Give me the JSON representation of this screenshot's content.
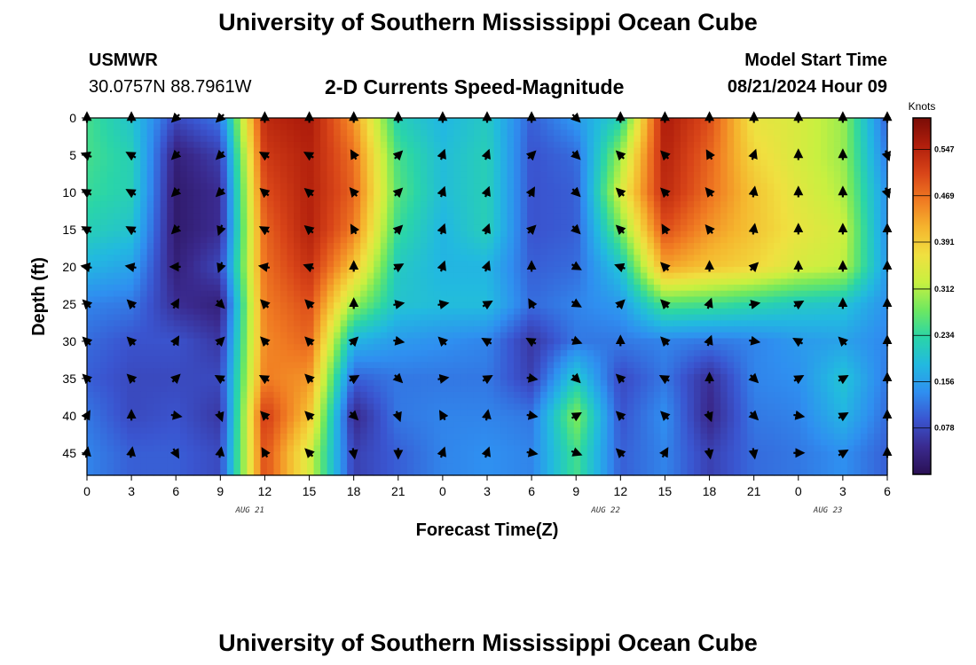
{
  "header": {
    "title_top": "University of Southern Mississippi Ocean Cube",
    "station": "USMWR",
    "coordinates": "30.0757N  88.7961W",
    "subtitle": "2-D Currents Speed-Magnitude",
    "model_label": "Model Start Time",
    "model_time": "08/21/2024 Hour 09",
    "title_bottom": "University of Southern Mississippi Ocean Cube"
  },
  "chart_data": {
    "type": "heatmap",
    "title": "2-D Currents Speed-Magnitude",
    "xlabel": "Forecast Time(Z)",
    "ylabel": "Depth (ft)",
    "xlim": [
      0,
      54
    ],
    "ylim": [
      0,
      48
    ],
    "x_hours": [
      0,
      3,
      6,
      9,
      12,
      15,
      18,
      21,
      24,
      27,
      30,
      33,
      36,
      39,
      42,
      45,
      48,
      51,
      54
    ],
    "x_tick_labels": [
      "0",
      "3",
      "6",
      "9",
      "12",
      "15",
      "18",
      "21",
      "0",
      "3",
      "6",
      "9",
      "12",
      "15",
      "18",
      "21",
      "0",
      "3",
      "6"
    ],
    "date_labels": [
      {
        "hour": 11,
        "label": "AUG 21"
      },
      {
        "hour": 35,
        "label": "AUG 22"
      },
      {
        "hour": 50,
        "label": "AUG 23"
      }
    ],
    "y_ticks": [
      0,
      5,
      10,
      15,
      20,
      25,
      30,
      35,
      40,
      45
    ],
    "y_tick_labels": [
      "0",
      "5",
      "10",
      "15",
      "20",
      "25",
      "30",
      "35",
      "40",
      "45"
    ],
    "depths": [
      0,
      5,
      10,
      15,
      20,
      25,
      30,
      35,
      40,
      45
    ],
    "speed_knots": [
      [
        0.25,
        0.2,
        0.08,
        0.12,
        0.54,
        0.56,
        0.44,
        0.22,
        0.18,
        0.21,
        0.1,
        0.15,
        0.22,
        0.56,
        0.5,
        0.36,
        0.34,
        0.3,
        0.1
      ],
      [
        0.25,
        0.22,
        0.03,
        0.07,
        0.52,
        0.55,
        0.47,
        0.25,
        0.19,
        0.22,
        0.09,
        0.11,
        0.3,
        0.55,
        0.48,
        0.38,
        0.34,
        0.3,
        0.12
      ],
      [
        0.24,
        0.22,
        0.02,
        0.05,
        0.5,
        0.55,
        0.48,
        0.26,
        0.19,
        0.22,
        0.09,
        0.1,
        0.34,
        0.54,
        0.47,
        0.4,
        0.35,
        0.31,
        0.14
      ],
      [
        0.22,
        0.2,
        0.02,
        0.05,
        0.48,
        0.55,
        0.46,
        0.24,
        0.18,
        0.22,
        0.09,
        0.1,
        0.28,
        0.5,
        0.44,
        0.4,
        0.36,
        0.33,
        0.14
      ],
      [
        0.18,
        0.16,
        0.03,
        0.08,
        0.47,
        0.53,
        0.4,
        0.21,
        0.18,
        0.18,
        0.1,
        0.11,
        0.2,
        0.43,
        0.4,
        0.38,
        0.34,
        0.32,
        0.15
      ],
      [
        0.13,
        0.12,
        0.05,
        0.03,
        0.46,
        0.5,
        0.3,
        0.2,
        0.19,
        0.19,
        0.11,
        0.13,
        0.15,
        0.26,
        0.25,
        0.23,
        0.21,
        0.2,
        0.14
      ],
      [
        0.11,
        0.09,
        0.09,
        0.06,
        0.45,
        0.48,
        0.18,
        0.15,
        0.14,
        0.13,
        0.06,
        0.12,
        0.12,
        0.13,
        0.12,
        0.13,
        0.15,
        0.16,
        0.13
      ],
      [
        0.1,
        0.08,
        0.08,
        0.08,
        0.46,
        0.44,
        0.1,
        0.12,
        0.12,
        0.12,
        0.07,
        0.21,
        0.08,
        0.12,
        0.05,
        0.13,
        0.14,
        0.2,
        0.12
      ],
      [
        0.12,
        0.08,
        0.09,
        0.06,
        0.52,
        0.4,
        0.04,
        0.12,
        0.13,
        0.13,
        0.12,
        0.29,
        0.09,
        0.14,
        0.04,
        0.12,
        0.13,
        0.18,
        0.11
      ],
      [
        0.13,
        0.1,
        0.1,
        0.08,
        0.5,
        0.34,
        0.07,
        0.1,
        0.13,
        0.14,
        0.13,
        0.25,
        0.1,
        0.13,
        0.07,
        0.11,
        0.12,
        0.14,
        0.1
      ]
    ],
    "direction_deg": [
      [
        0,
        0,
        225,
        225,
        0,
        0,
        0,
        0,
        0,
        0,
        0,
        135,
        0,
        0,
        0,
        0,
        0,
        0,
        0
      ],
      [
        290,
        300,
        225,
        225,
        300,
        300,
        330,
        45,
        20,
        20,
        45,
        135,
        315,
        315,
        330,
        20,
        0,
        0,
        160
      ],
      [
        300,
        300,
        225,
        225,
        310,
        310,
        320,
        45,
        20,
        20,
        30,
        135,
        315,
        315,
        320,
        10,
        0,
        0,
        160
      ],
      [
        300,
        300,
        225,
        200,
        300,
        310,
        330,
        45,
        20,
        20,
        45,
        135,
        315,
        330,
        320,
        10,
        0,
        0,
        0
      ],
      [
        280,
        280,
        270,
        200,
        280,
        290,
        0,
        60,
        20,
        20,
        0,
        120,
        290,
        315,
        0,
        45,
        0,
        0,
        0
      ],
      [
        315,
        315,
        30,
        135,
        315,
        315,
        0,
        80,
        80,
        60,
        330,
        120,
        45,
        315,
        20,
        80,
        60,
        0,
        0
      ],
      [
        315,
        315,
        30,
        45,
        315,
        315,
        45,
        100,
        315,
        300,
        300,
        110,
        0,
        315,
        20,
        100,
        300,
        315,
        0
      ],
      [
        315,
        315,
        45,
        300,
        300,
        315,
        60,
        135,
        80,
        60,
        100,
        135,
        315,
        300,
        0,
        135,
        60,
        60,
        0
      ],
      [
        30,
        0,
        100,
        160,
        315,
        315,
        135,
        160,
        330,
        10,
        100,
        60,
        315,
        315,
        160,
        135,
        100,
        60,
        0
      ],
      [
        10,
        10,
        150,
        10,
        330,
        315,
        170,
        180,
        20,
        20,
        100,
        110,
        315,
        30,
        170,
        170,
        90,
        60,
        0
      ]
    ],
    "colorbar": {
      "label": "Knots",
      "min": 0,
      "max": 0.6,
      "ticks": [
        0.078,
        0.156,
        0.234,
        0.312,
        0.391,
        0.469,
        0.547
      ],
      "tick_labels": [
        "0.078",
        "0.156",
        "0.234",
        "0.312",
        "0.391",
        "0.469",
        "0.547"
      ],
      "colors": [
        "#2a1054",
        "#3a2a8e",
        "#3a55d0",
        "#2f8ff0",
        "#22b9e0",
        "#2ad5a8",
        "#6ee860",
        "#c8f040",
        "#f0e040",
        "#f5b52e",
        "#f07a22",
        "#d84418",
        "#b01e0c",
        "#7a0c06"
      ]
    }
  }
}
